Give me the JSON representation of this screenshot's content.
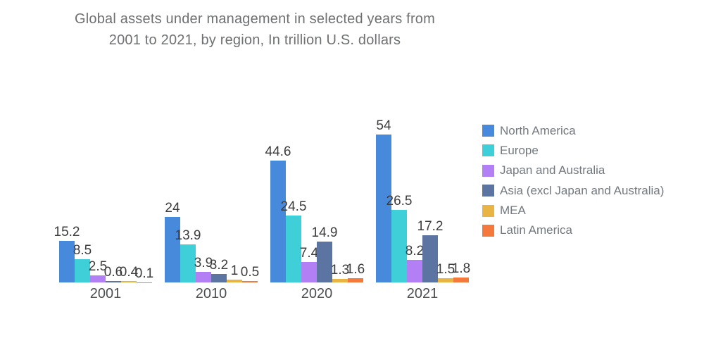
{
  "chart_data": {
    "type": "bar",
    "title": "Global assets under management in selected years from 2001 to 2021, by region, In trillion U.S. dollars",
    "title_lines": [
      "Global assets under management in selected years from",
      "2001 to 2021, by region, In trillion U.S. dollars"
    ],
    "categories": [
      "2001",
      "2010",
      "2020",
      "2021"
    ],
    "series": [
      {
        "name": "North America",
        "color": "#4789DB",
        "values": [
          15.2,
          24,
          44.6,
          54
        ]
      },
      {
        "name": "Europe",
        "color": "#3FCFD9",
        "values": [
          8.5,
          13.9,
          24.5,
          26.5
        ]
      },
      {
        "name": "Japan and Australia",
        "color": "#B27FF5",
        "values": [
          2.5,
          3.9,
          7.4,
          8.2
        ]
      },
      {
        "name": "Asia (excl Japan and Australia)",
        "color": "#5B74A1",
        "values": [
          0.6,
          3.2,
          14.9,
          17.2
        ]
      },
      {
        "name": "MEA",
        "color": "#E8B545",
        "values": [
          0.4,
          1,
          1.3,
          1.5
        ]
      },
      {
        "name": "Latin America",
        "color": "#F3793C",
        "values": [
          0.1,
          0.5,
          1.6,
          1.8
        ]
      }
    ],
    "xlabel": "",
    "ylabel": "",
    "unit": "trillion U.S. dollars",
    "ylim": [
      0,
      56
    ],
    "grid": false,
    "legend_position": "right",
    "value_labels_shown": true
  }
}
